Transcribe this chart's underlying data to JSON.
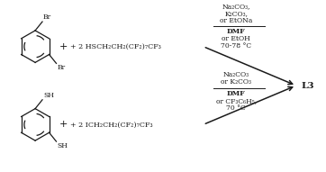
{
  "bg_color": "#ffffff",
  "line_color": "#1a1a1a",
  "text_color": "#1a1a1a",
  "fig_width": 3.62,
  "fig_height": 1.91,
  "dpi": 100,
  "rxn1_plus": "+ 2 HSCH₂CH₂(CF₂)₇CF₃",
  "rxn2_plus": "+ 2 ICH₂CH₂(CF₂)₇CF₃",
  "cond1_top1": "Na₂CO₃,",
  "cond1_top2": "K₂CO₃,",
  "cond1_top3": "or EtONa",
  "cond1_bot1": "DMF",
  "cond1_bot2": "or EtOH",
  "cond1_bot3": "70-78 °C",
  "cond2_top1": "Na₂CO₃",
  "cond2_top2": "or K₂CO₃",
  "cond2_bot1": "DMF",
  "cond2_bot2": "or CF₃C₆H₅,",
  "cond2_bot3": "70 °C",
  "product_label": "L3",
  "top_Br1": "Br",
  "top_Br2": "Br",
  "bot_SH1": "SH",
  "bot_SH2": "SH"
}
